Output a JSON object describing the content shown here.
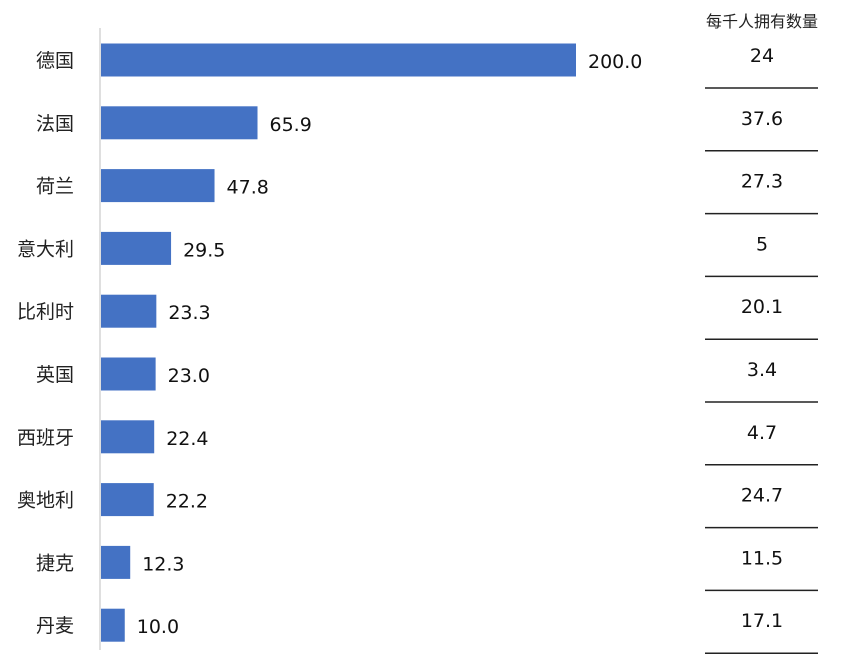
{
  "chart_data": {
    "type": "bar",
    "orientation": "horizontal",
    "categories": [
      "德国",
      "法国",
      "荷兰",
      "意大利",
      "比利时",
      "英国",
      "西班牙",
      "奥地利",
      "捷克",
      "丹麦"
    ],
    "values": [
      200.0,
      65.9,
      47.8,
      29.5,
      23.3,
      23.0,
      22.4,
      22.2,
      12.3,
      10.0
    ],
    "value_labels": [
      "200.0",
      "65.9",
      "47.8",
      "29.5",
      "23.3",
      "23.0",
      "22.4",
      "22.2",
      "12.3",
      "10.0"
    ],
    "bar_color": "#4472c4",
    "xlim": [
      0,
      200
    ],
    "grid": false,
    "side_table": {
      "header": "每千人拥有数量",
      "values": [
        "24",
        "37.6",
        "27.3",
        "5",
        "20.1",
        "3.4",
        "4.7",
        "24.7",
        "11.5",
        "17.1"
      ]
    }
  }
}
